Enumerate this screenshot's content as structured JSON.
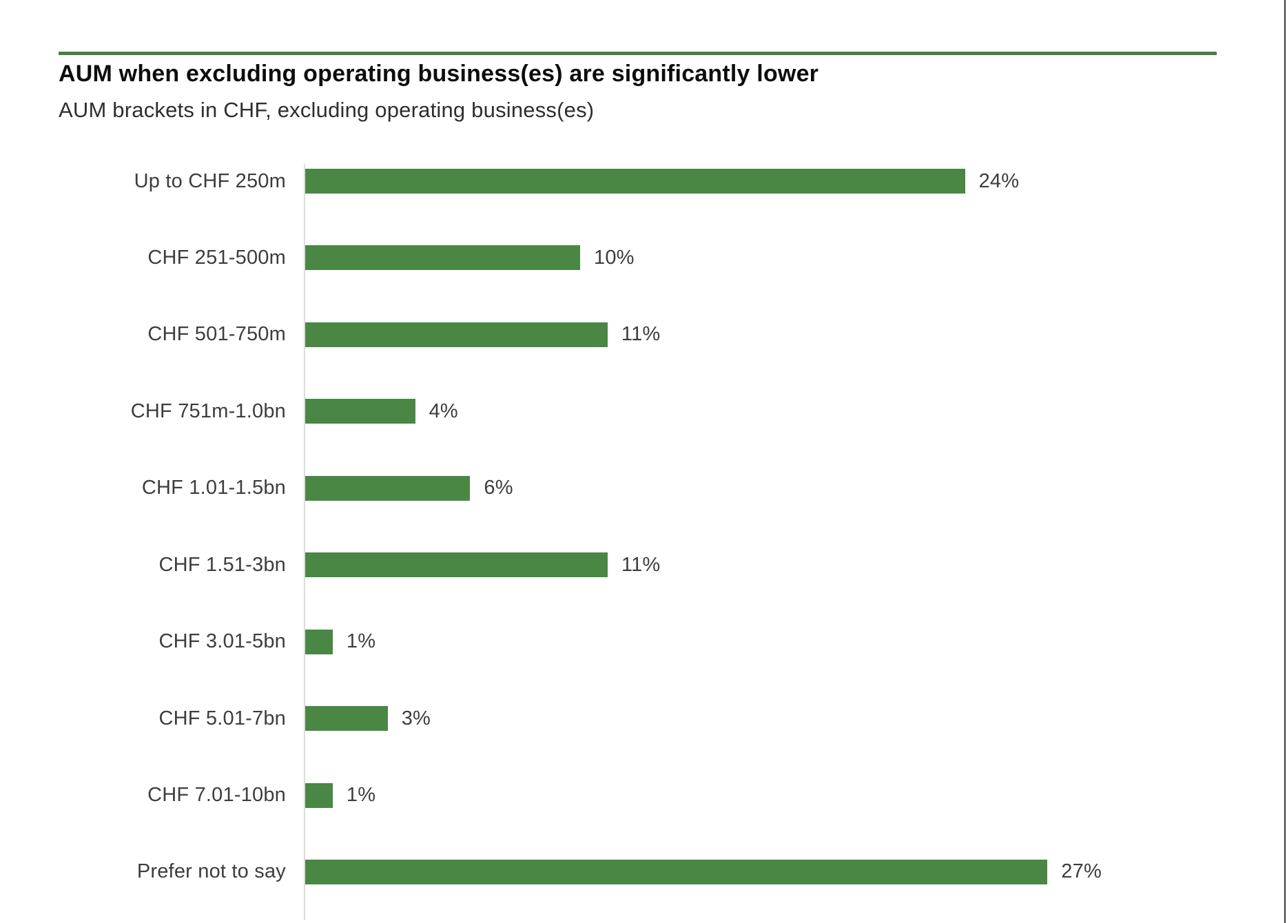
{
  "page": {
    "background": "#ffffff",
    "right_edge_line_color": "#3a3a3a"
  },
  "header": {
    "title": "AUM when excluding operating business(es) are significantly lower",
    "subtitle": "AUM brackets in CHF, excluding operating business(es)",
    "rule_color": "#45803f"
  },
  "chart_data": {
    "type": "bar",
    "orientation": "horizontal",
    "title": "AUM when excluding operating business(es) are significantly lower",
    "subtitle": "AUM brackets in CHF, excluding operating business(es)",
    "categories": [
      "Up to CHF 250m",
      "CHF 251-500m",
      "CHF 501-750m",
      "CHF 751m-1.0bn",
      "CHF 1.01-1.5bn",
      "CHF 1.51-3bn",
      "CHF 3.01-5bn",
      "CHF 5.01-7bn",
      "CHF 7.01-10bn",
      "Prefer not to say"
    ],
    "values": [
      24,
      10,
      11,
      4,
      6,
      11,
      1,
      3,
      1,
      27
    ],
    "value_labels": [
      "24%",
      "10%",
      "11%",
      "4%",
      "6%",
      "11%",
      "1%",
      "3%",
      "1%",
      "27%"
    ],
    "unit": "%",
    "xlim": [
      0,
      27
    ],
    "grid": false,
    "legend": false,
    "bar_color": "#4a8745",
    "axis_line_color": "#dcdcdc",
    "label_color": "#3d3d3d"
  }
}
